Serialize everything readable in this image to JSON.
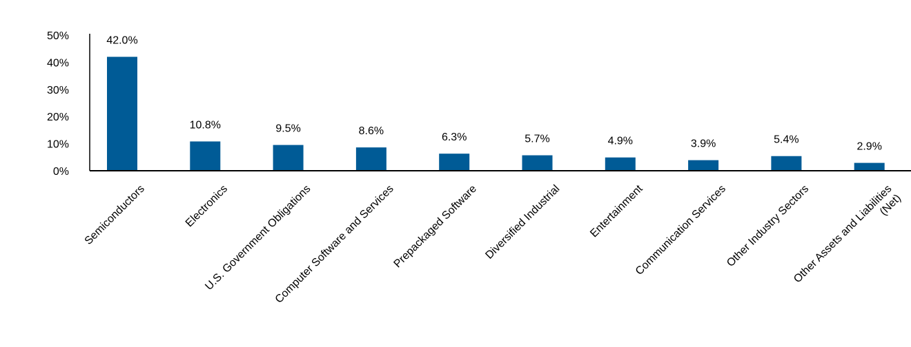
{
  "chart_data": {
    "type": "bar",
    "title": "",
    "xlabel": "",
    "ylabel": "",
    "ylim": [
      0,
      50
    ],
    "yticks": [
      "0%",
      "10%",
      "20%",
      "30%",
      "40%",
      "50%"
    ],
    "grid": false,
    "legend": "none",
    "bar_color": "#005b96",
    "categories": [
      [
        "Semiconductors"
      ],
      [
        "Electronics"
      ],
      [
        "U.S. Government Obligations"
      ],
      [
        "Computer Software and Services"
      ],
      [
        "Prepackaged Software"
      ],
      [
        "Diversified Industrial"
      ],
      [
        "Entertainment"
      ],
      [
        "Communication Services"
      ],
      [
        "Other Industry Sectors"
      ],
      [
        "Other Assets and Liabilities",
        "(Net)"
      ]
    ],
    "values": [
      42.0,
      10.8,
      9.5,
      8.6,
      6.3,
      5.7,
      4.9,
      3.9,
      5.4,
      2.9
    ],
    "data_labels": [
      "42.0%",
      "10.8%",
      "9.5%",
      "8.6%",
      "6.3%",
      "5.7%",
      "4.9%",
      "3.9%",
      "5.4%",
      "2.9%"
    ]
  }
}
